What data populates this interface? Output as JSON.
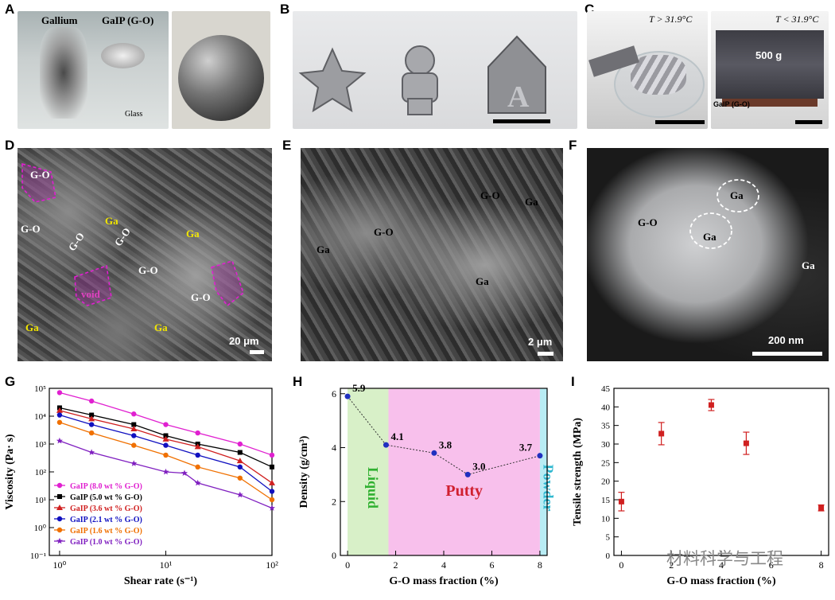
{
  "panels": {
    "A": {
      "letter": "A",
      "label_gallium": "Gallium",
      "label_galp": "GaIP (G-O)",
      "label_glass": "Glass"
    },
    "B": {
      "letter": "B",
      "glyph_house": "A"
    },
    "C": {
      "letter": "C",
      "temp_hot": "T > 31.9°C",
      "temp_cold": "T < 31.9°C",
      "weight": "500 g",
      "sample": "GaIP (G-O)"
    },
    "D": {
      "letter": "D",
      "labels": [
        {
          "text": "G-O",
          "color": "#ffffff"
        },
        {
          "text": "G-O",
          "color": "#ffffff"
        },
        {
          "text": "G-O",
          "color": "#ffffff"
        },
        {
          "text": "G-O",
          "color": "#ffffff"
        },
        {
          "text": "G-O",
          "color": "#ffffff"
        },
        {
          "text": "G-O",
          "color": "#ffffff"
        },
        {
          "text": "Ga",
          "color": "#f2e600"
        },
        {
          "text": "Ga",
          "color": "#f2e600"
        },
        {
          "text": "Ga",
          "color": "#f2e600"
        },
        {
          "text": "Ga",
          "color": "#f2e600"
        },
        {
          "text": "void",
          "color": "#e040c0"
        }
      ],
      "scale": "20 μm"
    },
    "E": {
      "letter": "E",
      "labels": [
        "G-O",
        "Ga",
        "G-O",
        "Ga",
        "Ga"
      ],
      "scale": "2 μm"
    },
    "F": {
      "letter": "F",
      "labels": [
        "G-O",
        "Ga",
        "Ga",
        "Ga"
      ],
      "scale": "200 nm"
    },
    "G": {
      "letter": "G"
    },
    "H": {
      "letter": "H"
    },
    "I": {
      "letter": "I"
    }
  },
  "watermark": "材料科学与工程",
  "colors": {
    "accent_magenta": "#e020d0",
    "accent_yellow": "#f2e600"
  },
  "chart_data": [
    {
      "type": "line",
      "panel": "G",
      "xlabel": "Shear rate (s⁻¹)",
      "ylabel": "Viscosity (Pa· s)",
      "xscale": "log",
      "yscale": "log",
      "xlim": [
        0.8,
        100
      ],
      "ylim": [
        0.1,
        100000
      ],
      "xticks": [
        "10⁰",
        "10¹",
        "10²"
      ],
      "yticks": [
        "10⁻¹",
        "10⁰",
        "10¹",
        "10²",
        "10³",
        "10⁴",
        "10⁵"
      ],
      "legend_position": "bottom-left",
      "series": [
        {
          "name": "GaIP (8.0 wt % G-O)",
          "color": "#e020d0",
          "marker": "circle",
          "x": [
            1,
            2,
            5,
            10,
            20,
            50,
            100
          ],
          "y": [
            70000,
            35000,
            12000,
            5000,
            2500,
            1000,
            400
          ]
        },
        {
          "name": "GaIP (5.0 wt % G-O)",
          "color": "#000000",
          "marker": "square",
          "x": [
            1,
            2,
            5,
            10,
            20,
            50,
            100
          ],
          "y": [
            20000,
            11000,
            5000,
            2000,
            1000,
            500,
            150
          ]
        },
        {
          "name": "GaIP (3.6 wt % G-O)",
          "color": "#d02020",
          "marker": "triangle",
          "x": [
            1,
            2,
            5,
            10,
            20,
            50,
            100
          ],
          "y": [
            16000,
            8000,
            3500,
            1500,
            800,
            250,
            40
          ]
        },
        {
          "name": "GaIP (2.1 wt % G-O)",
          "color": "#1010c0",
          "marker": "circle",
          "x": [
            1,
            2,
            5,
            10,
            20,
            50,
            100
          ],
          "y": [
            11000,
            5000,
            2000,
            900,
            400,
            150,
            20
          ]
        },
        {
          "name": "GaIP (1.6 wt % G-O)",
          "color": "#f07000",
          "marker": "circle",
          "x": [
            1,
            2,
            5,
            10,
            20,
            50,
            100
          ],
          "y": [
            6000,
            2500,
            900,
            400,
            150,
            60,
            10
          ]
        },
        {
          "name": "GaIP (1.0 wt % G-O)",
          "color": "#8020c0",
          "marker": "star",
          "x": [
            1,
            2,
            5,
            10,
            15,
            20,
            50,
            100
          ],
          "y": [
            1300,
            500,
            200,
            100,
            90,
            40,
            15,
            5
          ]
        }
      ]
    },
    {
      "type": "scatter",
      "panel": "H",
      "xlabel": "G-O mass fraction (%)",
      "ylabel": "Density (g/cm³)",
      "xlim": [
        -0.3,
        8.3
      ],
      "ylim": [
        0,
        6.2
      ],
      "xticks": [
        0,
        2,
        4,
        6,
        8
      ],
      "yticks": [
        0,
        2,
        4,
        6
      ],
      "x": [
        0,
        1.6,
        3.6,
        5.0,
        8.0
      ],
      "y": [
        5.9,
        4.1,
        3.8,
        3.0,
        3.7
      ],
      "point_labels": [
        "5.9",
        "4.1",
        "3.8",
        "3.0",
        "3.7"
      ],
      "regions": [
        {
          "label": "Liquid",
          "x0": 0,
          "x1": 1.7,
          "color": "#d8f0c8",
          "text_color": "#30b030"
        },
        {
          "label": "Putty",
          "x0": 1.7,
          "x1": 8.0,
          "color": "#f8c0ec",
          "text_color": "#d02030"
        },
        {
          "label": "Powder",
          "x0": 8.0,
          "x1": 8.3,
          "color": "#b8ecf4",
          "text_color": "#30b8d0"
        }
      ]
    },
    {
      "type": "scatter",
      "panel": "I",
      "xlabel": "G-O mass fraction (%)",
      "ylabel": "Tensile strength (MPa)",
      "xlim": [
        -0.3,
        8.3
      ],
      "ylim": [
        0,
        45
      ],
      "xticks": [
        0,
        2,
        4,
        6,
        8
      ],
      "yticks": [
        0,
        5,
        10,
        15,
        20,
        25,
        30,
        35,
        40,
        45
      ],
      "x": [
        0,
        1.6,
        3.6,
        5.0,
        8.0
      ],
      "y": [
        14.5,
        32.8,
        40.5,
        30.2,
        12.8
      ],
      "err": [
        2.5,
        3.0,
        1.5,
        3.0,
        0.8
      ]
    }
  ]
}
